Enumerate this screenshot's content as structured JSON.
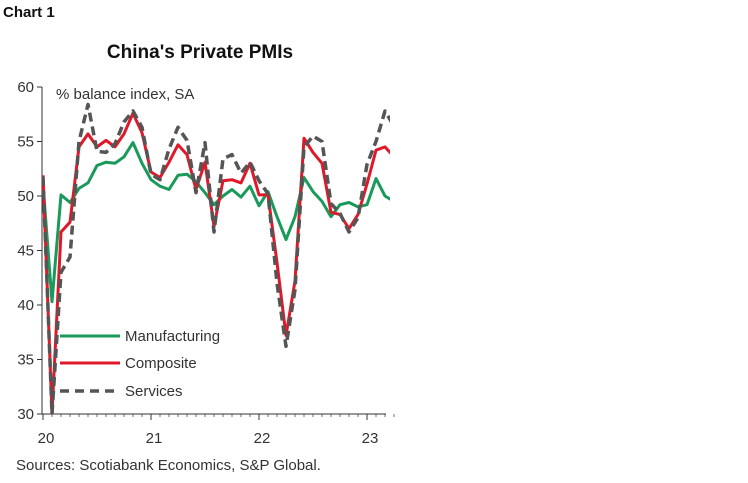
{
  "chart_number": "Chart 1",
  "chart_data": {
    "type": "line",
    "title": "China's Private PMIs",
    "ylabel": "% balance index, SA",
    "source": "Sources: Scotiabank Economics, S&P Global.",
    "ylim": [
      30,
      60
    ],
    "y_ticks": [
      "30",
      "35",
      "40",
      "45",
      "50",
      "55",
      "60"
    ],
    "x_ticks": [
      "20",
      "21",
      "22",
      "23"
    ],
    "x": [
      "2020-01",
      "2020-02",
      "2020-03",
      "2020-04",
      "2020-05",
      "2020-06",
      "2020-07",
      "2020-08",
      "2020-09",
      "2020-10",
      "2020-11",
      "2020-12",
      "2021-01",
      "2021-02",
      "2021-03",
      "2021-04",
      "2021-05",
      "2021-06",
      "2021-07",
      "2021-08",
      "2021-09",
      "2021-10",
      "2021-11",
      "2021-12",
      "2022-01",
      "2022-02",
      "2022-03",
      "2022-04",
      "2022-05",
      "2022-06",
      "2022-07",
      "2022-08",
      "2022-09",
      "2022-10",
      "2022-11",
      "2022-12",
      "2023-01",
      "2023-02",
      "2023-03",
      "2023-04"
    ],
    "legend_position": "bottom-left",
    "series": [
      {
        "name": "Manufacturing",
        "color": "#1a9a5a",
        "dash": "solid",
        "values": [
          51.1,
          40.3,
          50.1,
          49.4,
          50.7,
          51.2,
          52.8,
          53.1,
          53.0,
          53.6,
          54.9,
          53.0,
          51.5,
          50.9,
          50.6,
          51.9,
          52.0,
          51.3,
          50.3,
          49.2,
          50.0,
          50.6,
          49.9,
          50.9,
          49.1,
          50.4,
          48.1,
          46.0,
          48.1,
          51.7,
          50.4,
          49.5,
          48.1,
          49.2,
          49.4,
          49.0,
          49.2,
          51.6,
          50.0,
          49.5
        ]
      },
      {
        "name": "Composite",
        "color": "#e0192a",
        "dash": "solid",
        "values": [
          51.9,
          27.5,
          46.7,
          47.6,
          54.5,
          55.7,
          54.5,
          55.1,
          54.5,
          55.7,
          57.6,
          55.8,
          52.2,
          51.7,
          53.1,
          54.7,
          53.8,
          50.6,
          53.1,
          47.2,
          51.4,
          51.5,
          51.2,
          53.0,
          50.1,
          50.1,
          43.9,
          37.2,
          42.2,
          55.3,
          54.0,
          53.0,
          48.5,
          48.3,
          47.0,
          48.3,
          51.1,
          54.2,
          54.5,
          53.6
        ]
      },
      {
        "name": "Services",
        "color": "#555555",
        "dash": "dashed",
        "values": [
          51.8,
          26.5,
          43.0,
          44.4,
          55.0,
          58.4,
          54.1,
          54.0,
          54.8,
          56.8,
          57.8,
          56.3,
          52.0,
          51.5,
          54.3,
          56.3,
          55.1,
          50.3,
          54.9,
          46.7,
          53.4,
          53.8,
          52.1,
          53.1,
          51.4,
          50.2,
          42.0,
          36.2,
          41.4,
          54.5,
          55.5,
          55.0,
          49.3,
          48.4,
          46.7,
          48.0,
          52.9,
          55.0,
          57.8,
          56.4
        ]
      }
    ]
  }
}
